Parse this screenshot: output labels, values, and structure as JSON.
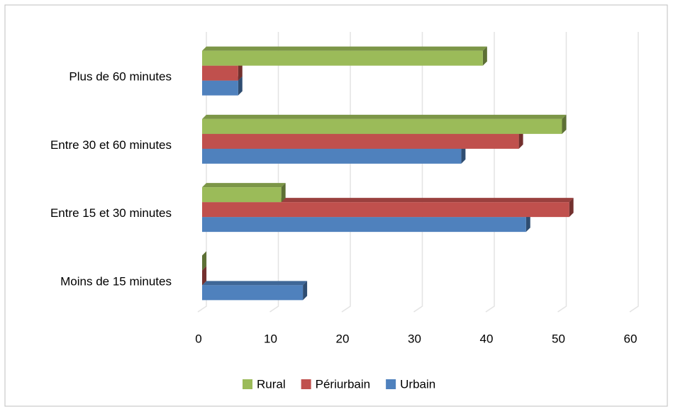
{
  "chart_data": {
    "type": "bar3d-horizontal",
    "categories": [
      "Plus de 60 minutes",
      "Entre 30 et 60 minutes",
      "Entre 15 et 30 minutes",
      "Moins de 15 minutes"
    ],
    "series": [
      {
        "name": "Rural",
        "color": "#9bbb59",
        "values": [
          39,
          50,
          11,
          0
        ]
      },
      {
        "name": "Périurbain",
        "color": "#c0504d",
        "values": [
          5,
          44,
          51,
          0
        ]
      },
      {
        "name": "Urbain",
        "color": "#4f81bd",
        "values": [
          5,
          36,
          45,
          14
        ]
      }
    ],
    "xlim": [
      0,
      60
    ],
    "xticks": [
      0,
      10,
      20,
      30,
      40,
      50,
      60
    ],
    "grid": true,
    "legend": "bottom"
  }
}
